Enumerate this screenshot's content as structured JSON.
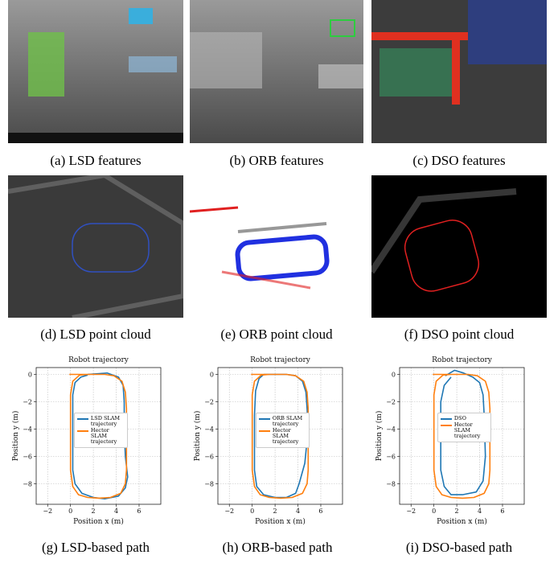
{
  "panels": [
    {
      "caption": "(a) LSD features"
    },
    {
      "caption": "(b) ORB features"
    },
    {
      "caption": "(c) DSO features"
    },
    {
      "caption": "(d) LSD point cloud"
    },
    {
      "caption": "(e) ORB point cloud"
    },
    {
      "caption": "(f) DSO point cloud"
    }
  ],
  "chart_data": [
    {
      "type": "line",
      "title": "Robot trajectory",
      "x_label": "Position x (m)",
      "y_label": "Position y (m)",
      "caption": "(g) LSD-based path",
      "xlim": [
        -3,
        7.9
      ],
      "ylim": [
        -9.5,
        0.5
      ],
      "xticks": [
        {
          "value": -2,
          "label": "−2"
        },
        0,
        2,
        4,
        6
      ],
      "yticks": [
        0,
        {
          "value": -2,
          "label": "−2"
        },
        {
          "value": -4,
          "label": "−4"
        },
        {
          "value": -6,
          "label": "−6"
        },
        {
          "value": -8,
          "label": "−8"
        }
      ],
      "grid": true,
      "series": [
        {
          "name": "LSD SLAM trajectory",
          "color": "#1f77b4",
          "x": [
            1.5,
            2.5,
            3.2,
            4.2,
            4.6,
            4.7,
            4.7,
            4.8,
            5.0,
            4.8,
            4.2,
            3.0,
            2.0,
            1.0,
            0.4,
            0.2,
            0.2,
            0.2,
            0.2,
            0.4,
            0.9,
            1.5
          ],
          "values": [
            0,
            0.05,
            0.1,
            -0.2,
            -0.8,
            -2,
            -4,
            -6,
            -7.5,
            -8.3,
            -8.9,
            -9.1,
            -9,
            -8.7,
            -8,
            -7,
            -5,
            -3,
            -1.5,
            -0.6,
            -0.2,
            -0.05
          ]
        },
        {
          "name": "Hector SLAM trajectory",
          "color": "#ff7f0e",
          "x": [
            -0.1,
            1,
            2,
            3,
            3.8,
            4.5,
            4.8,
            4.9,
            4.9,
            4.9,
            4.9,
            4.8,
            4.4,
            3.5,
            2.5,
            1.5,
            0.7,
            0.2,
            0,
            0,
            0,
            0,
            0.2,
            0.8,
            1.5
          ],
          "values": [
            0,
            0,
            0,
            0,
            -0.1,
            -0.5,
            -1.3,
            -2.5,
            -4,
            -5.5,
            -7,
            -8,
            -8.7,
            -9,
            -9.05,
            -9,
            -8.8,
            -8.2,
            -7,
            -5,
            -3,
            -1.5,
            -0.5,
            -0.05,
            0
          ]
        }
      ]
    },
    {
      "type": "line",
      "title": "Robot trajectory",
      "x_label": "Position x (m)",
      "y_label": "Position y (m)",
      "caption": "(h) ORB-based path",
      "xlim": [
        -3,
        7.9
      ],
      "ylim": [
        -9.5,
        0.5
      ],
      "xticks": [
        {
          "value": -2,
          "label": "−2"
        },
        0,
        2,
        4,
        6
      ],
      "yticks": [
        0,
        {
          "value": -2,
          "label": "−2"
        },
        {
          "value": -4,
          "label": "−4"
        },
        {
          "value": -6,
          "label": "−6"
        },
        {
          "value": -8,
          "label": "−8"
        }
      ],
      "grid": true,
      "series": [
        {
          "name": "ORB SLAM trajectory",
          "color": "#1f77b4",
          "x": [
            1.0,
            2.0,
            3.0,
            3.8,
            4.4,
            4.7,
            4.8,
            4.9,
            4.6,
            4.1,
            3.8,
            3.0,
            2.0,
            1.0,
            0.4,
            0.2,
            0.2,
            0.2,
            0.3,
            0.6,
            1.0
          ],
          "values": [
            0,
            0,
            0,
            -0.1,
            -0.5,
            -1.3,
            -2.5,
            -4,
            -6.5,
            -8,
            -8.7,
            -9,
            -9,
            -8.8,
            -8.2,
            -7,
            -5,
            -3,
            -1.2,
            -0.3,
            0
          ]
        },
        {
          "name": "Hector SLAM trajectory",
          "color": "#ff7f0e",
          "x": [
            -0.1,
            1,
            2,
            3,
            3.8,
            4.5,
            4.8,
            4.9,
            4.9,
            4.9,
            4.9,
            4.8,
            4.4,
            3.5,
            2.5,
            1.5,
            0.7,
            0.2,
            0,
            0,
            0,
            0,
            0.2,
            0.8,
            1.5
          ],
          "values": [
            0,
            0,
            0,
            0,
            -0.1,
            -0.5,
            -1.3,
            -2.5,
            -4,
            -5.5,
            -7,
            -8,
            -8.7,
            -9,
            -9.05,
            -9,
            -8.8,
            -8.2,
            -7,
            -5,
            -3,
            -1.5,
            -0.5,
            -0.05,
            0
          ]
        }
      ]
    },
    {
      "type": "line",
      "title": "Robot trajectory",
      "x_label": "Position x (m)",
      "y_label": "Position y (m)",
      "caption": "(i) DSO-based path",
      "xlim": [
        -3,
        7.9
      ],
      "ylim": [
        -9.5,
        0.5
      ],
      "xticks": [
        {
          "value": -2,
          "label": "−2"
        },
        0,
        2,
        4,
        6
      ],
      "yticks": [
        0,
        {
          "value": -2,
          "label": "−2"
        },
        {
          "value": -4,
          "label": "−4"
        },
        {
          "value": -6,
          "label": "−6"
        },
        {
          "value": -8,
          "label": "−8"
        }
      ],
      "grid": true,
      "series": [
        {
          "name": "DSO",
          "color": "#1f77b4",
          "x": [
            1.0,
            1.8,
            2.6,
            3.4,
            4.0,
            4.3,
            4.4,
            4.5,
            4.3,
            3.7,
            2.5,
            1.5,
            0.9,
            0.6,
            0.6,
            0.6,
            0.9,
            1.5
          ],
          "values": [
            -0.1,
            0.3,
            0.1,
            -0.2,
            -0.6,
            -1.5,
            -3,
            -6,
            -7.8,
            -8.6,
            -8.8,
            -8.8,
            -8.2,
            -7,
            -4,
            -2,
            -0.8,
            -0.2
          ]
        },
        {
          "name": "Hector SLAM trajectory",
          "color": "#ff7f0e",
          "x": [
            -0.1,
            1,
            2,
            3,
            3.8,
            4.5,
            4.8,
            4.9,
            4.9,
            4.9,
            4.9,
            4.8,
            4.4,
            3.5,
            2.5,
            1.5,
            0.7,
            0.2,
            0,
            0,
            0,
            0,
            0.2,
            0.8,
            1.5
          ],
          "values": [
            0,
            0,
            0,
            0,
            -0.1,
            -0.5,
            -1.3,
            -2.5,
            -4,
            -5.5,
            -7,
            -8,
            -8.7,
            -9,
            -9.05,
            -9,
            -8.8,
            -8.2,
            -7,
            -5,
            -3,
            -1.5,
            -0.5,
            -0.05,
            0
          ]
        }
      ]
    }
  ]
}
